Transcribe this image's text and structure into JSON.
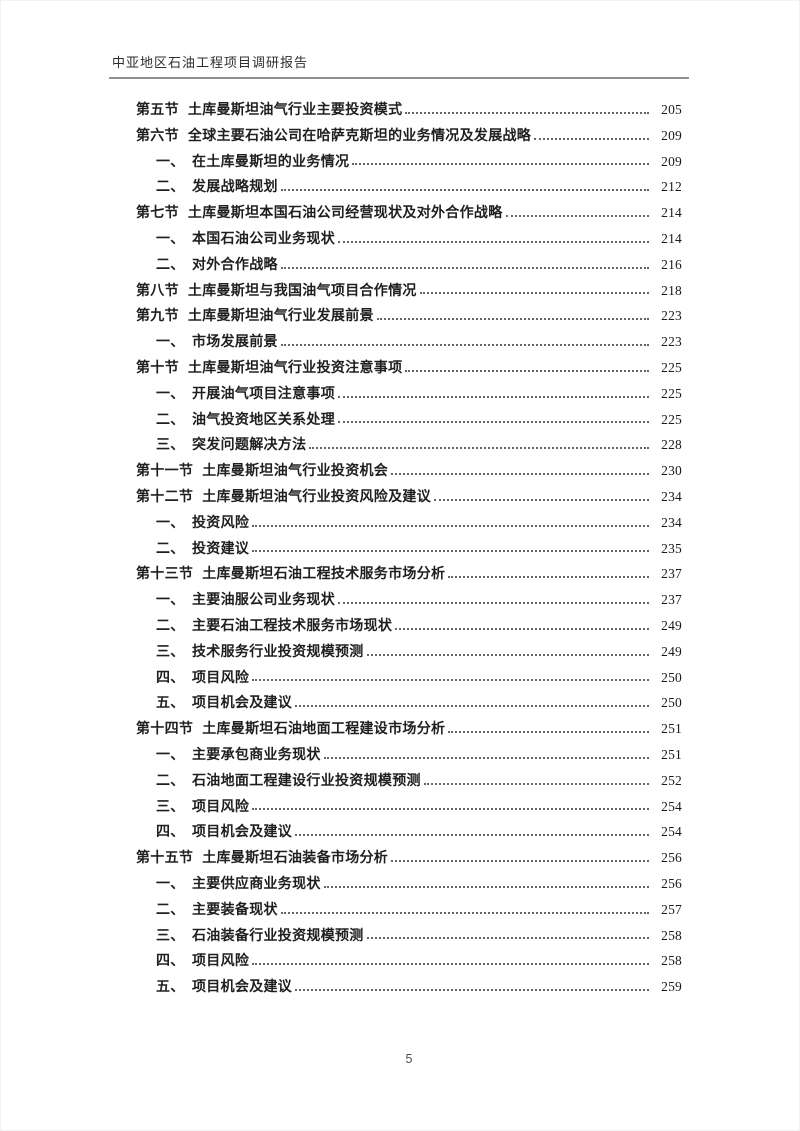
{
  "header": {
    "title": "中亚地区石油工程项目调研报告"
  },
  "footer": {
    "page_number": "5"
  },
  "colors": {
    "ink": "#1f1f1f",
    "header_rule": "#8f8f8f",
    "leader_dots": "#4a4a4a"
  },
  "toc": {
    "entries": [
      {
        "level": 1,
        "num": "第五节",
        "title": "土库曼斯坦油气行业主要投资模式",
        "page": "205"
      },
      {
        "level": 1,
        "num": "第六节",
        "title": "全球主要石油公司在哈萨克斯坦的业务情况及发展战略",
        "page": "209"
      },
      {
        "level": 2,
        "num": "一、",
        "title": "在土库曼斯坦的业务情况",
        "page": "209"
      },
      {
        "level": 2,
        "num": "二、",
        "title": "发展战略规划",
        "page": "212"
      },
      {
        "level": 1,
        "num": "第七节",
        "title": "土库曼斯坦本国石油公司经营现状及对外合作战略",
        "page": "214"
      },
      {
        "level": 2,
        "num": "一、",
        "title": "本国石油公司业务现状",
        "page": "214"
      },
      {
        "level": 2,
        "num": "二、",
        "title": "对外合作战略",
        "page": "216"
      },
      {
        "level": 1,
        "num": "第八节",
        "title": "土库曼斯坦与我国油气项目合作情况",
        "page": "218"
      },
      {
        "level": 1,
        "num": "第九节",
        "title": "土库曼斯坦油气行业发展前景",
        "page": "223"
      },
      {
        "level": 2,
        "num": "一、",
        "title": "市场发展前景",
        "page": "223"
      },
      {
        "level": 1,
        "num": "第十节",
        "title": "土库曼斯坦油气行业投资注意事项",
        "page": "225"
      },
      {
        "level": 2,
        "num": "一、",
        "title": "开展油气项目注意事项",
        "page": "225"
      },
      {
        "level": 2,
        "num": "二、",
        "title": "油气投资地区关系处理",
        "page": "225"
      },
      {
        "level": 2,
        "num": "三、",
        "title": "突发问题解决方法",
        "page": "228"
      },
      {
        "level": 1,
        "num": "第十一节",
        "title": "土库曼斯坦油气行业投资机会",
        "page": "230"
      },
      {
        "level": 1,
        "num": "第十二节",
        "title": "土库曼斯坦油气行业投资风险及建议",
        "page": "234"
      },
      {
        "level": 2,
        "num": "一、",
        "title": "投资风险",
        "page": "234"
      },
      {
        "level": 2,
        "num": "二、",
        "title": "投资建议",
        "page": "235"
      },
      {
        "level": 1,
        "num": "第十三节",
        "title": "土库曼斯坦石油工程技术服务市场分析",
        "page": "237"
      },
      {
        "level": 2,
        "num": "一、",
        "title": "主要油服公司业务现状",
        "page": "237"
      },
      {
        "level": 2,
        "num": "二、",
        "title": "主要石油工程技术服务市场现状",
        "page": "249"
      },
      {
        "level": 2,
        "num": "三、",
        "title": "技术服务行业投资规模预测",
        "page": "249"
      },
      {
        "level": 2,
        "num": "四、",
        "title": "项目风险",
        "page": "250"
      },
      {
        "level": 2,
        "num": "五、",
        "title": "项目机会及建议",
        "page": "250"
      },
      {
        "level": 1,
        "num": "第十四节",
        "title": "土库曼斯坦石油地面工程建设市场分析",
        "page": "251"
      },
      {
        "level": 2,
        "num": "一、",
        "title": "主要承包商业务现状",
        "page": "251"
      },
      {
        "level": 2,
        "num": "二、",
        "title": "石油地面工程建设行业投资规模预测",
        "page": "252"
      },
      {
        "level": 2,
        "num": "三、",
        "title": "项目风险",
        "page": "254"
      },
      {
        "level": 2,
        "num": "四、",
        "title": "项目机会及建议",
        "page": "254"
      },
      {
        "level": 1,
        "num": "第十五节",
        "title": "土库曼斯坦石油装备市场分析",
        "page": "256"
      },
      {
        "level": 2,
        "num": "一、",
        "title": "主要供应商业务现状",
        "page": "256"
      },
      {
        "level": 2,
        "num": "二、",
        "title": "主要装备现状",
        "page": "257"
      },
      {
        "level": 2,
        "num": "三、",
        "title": "石油装备行业投资规模预测",
        "page": "258"
      },
      {
        "level": 2,
        "num": "四、",
        "title": "项目风险",
        "page": "258"
      },
      {
        "level": 2,
        "num": "五、",
        "title": "项目机会及建议",
        "page": "259"
      }
    ]
  }
}
